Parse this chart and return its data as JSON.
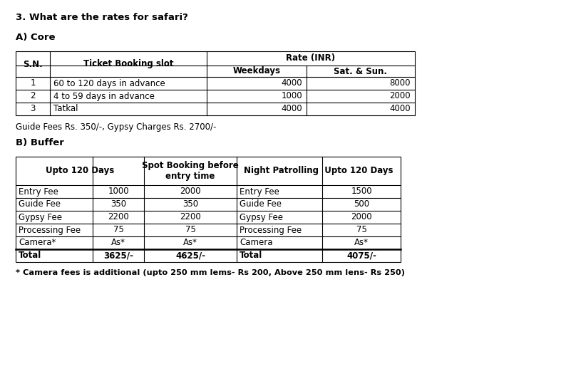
{
  "title": "3. What are the rates for safari?",
  "section_a_title": "A) Core",
  "section_b_title": "B) Buffer",
  "core_table": {
    "rows": [
      [
        "1",
        "60 to 120 days in advance",
        "4000",
        "8000"
      ],
      [
        "2",
        "4 to 59 days in advance",
        "1000",
        "2000"
      ],
      [
        "3",
        "Tatkal",
        "4000",
        "4000"
      ]
    ],
    "footnote": "Guide Fees Rs. 350/-, Gypsy Charges Rs. 2700/-"
  },
  "buffer_table": {
    "rows": [
      [
        "Entry Fee",
        "1000",
        "2000",
        "Entry Fee",
        "1500"
      ],
      [
        "Guide Fee",
        "350",
        "350",
        "Guide Fee",
        "500"
      ],
      [
        "Gypsy Fee",
        "2200",
        "2200",
        "Gypsy Fee",
        "2000"
      ],
      [
        "Processing Fee",
        "75",
        "75",
        "Processing Fee",
        "75"
      ],
      [
        "Camera*",
        "As*",
        "As*",
        "Camera",
        "As*"
      ],
      [
        "Total",
        "3625/-",
        "4625/-",
        "Total",
        "4075/-"
      ]
    ],
    "footnote": "* Camera fees is additional (upto 250 mm lems- Rs 200, Above 250 mm lens- Rs 250)"
  },
  "bg_color": "#ffffff"
}
